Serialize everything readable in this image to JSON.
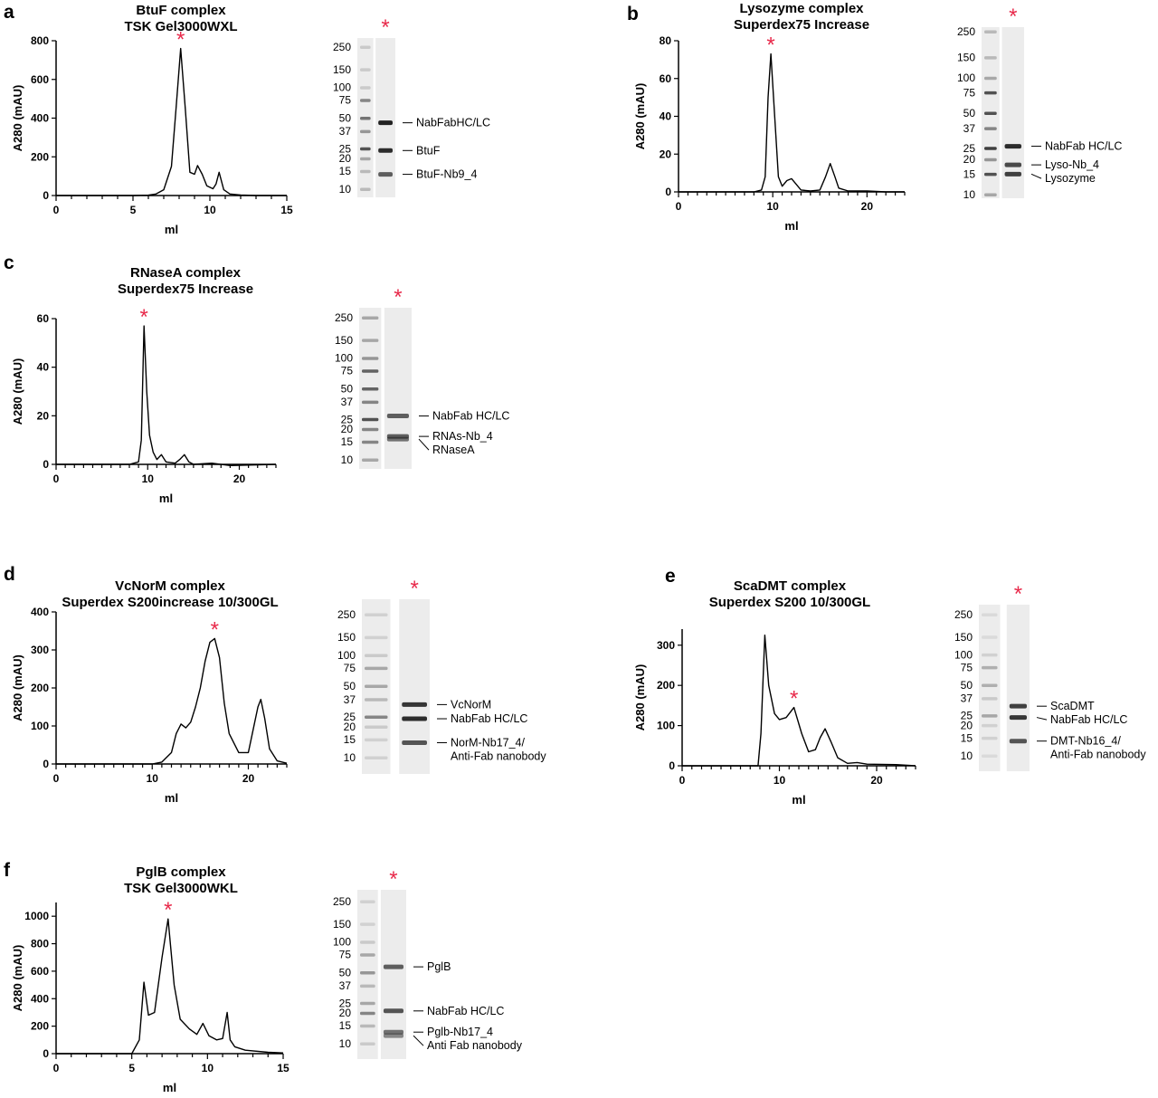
{
  "colors": {
    "line": "#000000",
    "star": "#e8294a",
    "gel_bg": "#ececec",
    "band": "#222222"
  },
  "star_symbol": "*",
  "chart_data": [
    {
      "type": "line",
      "letter": "a",
      "title": [
        "BtuF complex",
        "TSK Gel3000WXL"
      ],
      "xlabel": "ml",
      "ylabel": "A280 (mAU)",
      "xlim": [
        0,
        15
      ],
      "ylim": [
        0,
        800
      ],
      "xticks": [
        0,
        5,
        10,
        15
      ],
      "yticks": [
        0,
        200,
        400,
        600,
        800
      ],
      "star_x": 8.1,
      "x": [
        0,
        5,
        6,
        6.5,
        7,
        7.5,
        7.8,
        8.1,
        8.4,
        8.7,
        9.0,
        9.2,
        9.5,
        9.8,
        10.2,
        10.4,
        10.6,
        10.9,
        11.3,
        12,
        13,
        15
      ],
      "y": [
        0,
        0,
        2,
        8,
        30,
        150,
        450,
        760,
        450,
        120,
        110,
        155,
        110,
        50,
        35,
        60,
        120,
        30,
        8,
        3,
        0,
        0
      ],
      "gel": {
        "markers": [
          250,
          150,
          100,
          75,
          50,
          37,
          25,
          20,
          15,
          10
        ],
        "ladder_bands": [
          [
            250,
            0.2
          ],
          [
            150,
            0.2
          ],
          [
            100,
            0.2
          ],
          [
            75,
            0.6
          ],
          [
            50,
            0.7
          ],
          [
            37,
            0.5
          ],
          [
            25,
            0.9
          ],
          [
            20,
            0.4
          ],
          [
            15,
            0.3
          ],
          [
            10,
            0.3
          ]
        ],
        "sample_bands": [
          [
            45,
            1
          ],
          [
            24,
            0.95
          ],
          [
            14,
            0.7
          ]
        ],
        "labels": [
          {
            "text": "NabFabHC/LC",
            "kDa": 45
          },
          {
            "text": "BtuF",
            "kDa": 24
          },
          {
            "text": "BtuF-Nb9_4",
            "kDa": 14
          }
        ]
      }
    },
    {
      "type": "line",
      "letter": "b",
      "title": [
        "Lysozyme complex",
        "Superdex75 Increase"
      ],
      "xlabel": "ml",
      "ylabel": "A280 (mAU)",
      "xlim": [
        0,
        24
      ],
      "ylim": [
        0,
        80
      ],
      "xticks": [
        0,
        10,
        20
      ],
      "yticks": [
        0,
        20,
        40,
        60,
        80
      ],
      "star_x": 9.8,
      "x": [
        0,
        8,
        8.8,
        9.2,
        9.5,
        9.8,
        10.2,
        10.6,
        11,
        11.5,
        12,
        12.5,
        13,
        14,
        15,
        15.6,
        16.1,
        16.6,
        17,
        18,
        20,
        22,
        24
      ],
      "y": [
        0,
        0,
        1,
        8,
        50,
        73,
        40,
        8,
        3,
        6,
        7,
        4,
        1,
        0.5,
        1,
        8,
        15,
        8,
        2,
        0.5,
        0.5,
        0,
        0
      ],
      "gel": {
        "markers": [
          250,
          150,
          100,
          75,
          50,
          37,
          25,
          20,
          15,
          10
        ],
        "ladder_bands": [
          [
            250,
            0.3
          ],
          [
            150,
            0.3
          ],
          [
            100,
            0.4
          ],
          [
            75,
            0.9
          ],
          [
            50,
            0.9
          ],
          [
            37,
            0.6
          ],
          [
            25,
            1
          ],
          [
            20,
            0.5
          ],
          [
            15,
            0.9
          ],
          [
            10,
            0.4
          ]
        ],
        "sample_bands": [
          [
            26,
            0.95
          ],
          [
            18,
            0.8
          ],
          [
            15,
            0.85
          ]
        ],
        "labels": [
          {
            "text": "NabFab HC/LC",
            "kDa": 26
          },
          {
            "text": "Lyso-Nb_4",
            "kDa": 18
          },
          {
            "text": "Lysozyme",
            "kDa": 15
          }
        ]
      }
    },
    {
      "type": "line",
      "letter": "c",
      "title": [
        "RNaseA complex",
        "Superdex75 Increase"
      ],
      "xlabel": "ml",
      "ylabel": "A280 (mAU)",
      "xlim": [
        0,
        24
      ],
      "ylim": [
        0,
        60
      ],
      "xticks": [
        0,
        10,
        20
      ],
      "yticks": [
        0,
        20,
        40,
        60
      ],
      "star_x": 9.6,
      "x": [
        0,
        8,
        9,
        9.3,
        9.6,
        9.9,
        10.2,
        10.6,
        11,
        11.5,
        12,
        13,
        13.5,
        14,
        14.5,
        15,
        17,
        19,
        24
      ],
      "y": [
        0,
        0,
        1,
        10,
        57,
        30,
        12,
        5,
        2,
        4,
        1,
        0.5,
        2,
        4,
        1,
        0,
        0.5,
        -0.5,
        0
      ],
      "gel": {
        "markers": [
          250,
          150,
          100,
          75,
          50,
          37,
          25,
          20,
          15,
          10
        ],
        "ladder_bands": [
          [
            250,
            0.4
          ],
          [
            150,
            0.4
          ],
          [
            100,
            0.5
          ],
          [
            75,
            0.8
          ],
          [
            50,
            0.8
          ],
          [
            37,
            0.6
          ],
          [
            25,
            0.9
          ],
          [
            20,
            0.6
          ],
          [
            15,
            0.6
          ],
          [
            10,
            0.4
          ]
        ],
        "sample_bands": [
          [
            27,
            0.7
          ],
          [
            17,
            0.7
          ],
          [
            16,
            0.6
          ]
        ],
        "labels": [
          {
            "text": "NabFab HC/LC",
            "kDa": 27
          },
          {
            "text": "RNAs-Nb_4",
            "kDa": 17
          },
          {
            "text": "RNaseA",
            "kDa": 16
          }
        ]
      }
    },
    {
      "type": "line",
      "letter": "d",
      "title": [
        "VcNorM complex",
        "Superdex S200increase 10/300GL"
      ],
      "xlabel": "ml",
      "ylabel": "A280 (mAU)",
      "xlim": [
        0,
        24
      ],
      "ylim": [
        0,
        400
      ],
      "xticks": [
        0,
        10,
        20
      ],
      "yticks": [
        0,
        100,
        200,
        300,
        400
      ],
      "star_x": 16.5,
      "x": [
        0,
        10,
        11,
        12,
        12.5,
        13,
        13.5,
        14,
        14.5,
        15,
        15.5,
        16,
        16.5,
        17,
        17.5,
        18,
        19,
        20,
        20.5,
        21,
        21.3,
        21.7,
        22.2,
        23,
        24
      ],
      "y": [
        0,
        0,
        5,
        30,
        80,
        105,
        95,
        110,
        150,
        200,
        270,
        320,
        330,
        280,
        160,
        80,
        30,
        30,
        90,
        150,
        170,
        120,
        40,
        8,
        2
      ],
      "gel": {
        "markers": [
          250,
          150,
          100,
          75,
          50,
          37,
          25,
          20,
          15,
          10
        ],
        "split": true,
        "ladder_bands": [
          [
            250,
            0.15
          ],
          [
            150,
            0.15
          ],
          [
            100,
            0.2
          ],
          [
            75,
            0.4
          ],
          [
            50,
            0.4
          ],
          [
            37,
            0.3
          ],
          [
            25,
            0.6
          ],
          [
            20,
            0.2
          ],
          [
            15,
            0.15
          ],
          [
            10,
            0.15
          ]
        ],
        "sample_bands": [
          [
            33,
            0.9
          ],
          [
            24,
            0.95
          ],
          [
            14,
            0.75
          ]
        ],
        "labels": [
          {
            "text": "VcNorM",
            "kDa": 33
          },
          {
            "text": "NabFab HC/LC",
            "kDa": 24
          },
          {
            "text": "NorM-Nb17_4/",
            "text2": "Anti-Fab nanobody",
            "kDa": 14
          }
        ]
      }
    },
    {
      "type": "line",
      "letter": "e",
      "title": [
        "ScaDMT complex",
        "Superdex S200 10/300GL"
      ],
      "xlabel": "ml",
      "ylabel": "A280 (mAU)",
      "xlim": [
        0,
        24
      ],
      "ylim": [
        0,
        340
      ],
      "xticks": [
        0,
        10,
        20
      ],
      "yticks": [
        0,
        100,
        200,
        300
      ],
      "star_x": 11.5,
      "x": [
        0,
        7.8,
        8.1,
        8.5,
        8.9,
        9.5,
        10,
        10.7,
        11.5,
        12.3,
        13,
        13.7,
        14.2,
        14.7,
        15.3,
        16,
        17,
        18,
        19,
        22,
        24
      ],
      "y": [
        0,
        0,
        80,
        325,
        200,
        130,
        115,
        120,
        145,
        80,
        35,
        40,
        70,
        92,
        60,
        20,
        6,
        8,
        4,
        3,
        0
      ],
      "gel": {
        "markers": [
          250,
          150,
          100,
          75,
          50,
          37,
          25,
          20,
          15,
          10
        ],
        "split": true,
        "ladder_bands": [
          [
            250,
            0.1
          ],
          [
            150,
            0.1
          ],
          [
            100,
            0.15
          ],
          [
            75,
            0.35
          ],
          [
            50,
            0.35
          ],
          [
            37,
            0.2
          ],
          [
            25,
            0.4
          ],
          [
            20,
            0.15
          ],
          [
            15,
            0.15
          ],
          [
            10,
            0.1
          ]
        ],
        "sample_bands": [
          [
            31,
            0.85
          ],
          [
            24,
            0.9
          ],
          [
            14,
            0.75
          ]
        ],
        "labels": [
          {
            "text": "ScaDMT",
            "kDa": 31
          },
          {
            "text": "NabFab HC/LC",
            "kDa": 24
          },
          {
            "text": "DMT-Nb16_4/",
            "text2": "Anti-Fab nanobody",
            "kDa": 14
          }
        ]
      }
    },
    {
      "type": "line",
      "letter": "f",
      "title": [
        "PglB complex",
        "TSK Gel3000WKL"
      ],
      "xlabel": "ml",
      "ylabel": "A280 (mAU)",
      "xlim": [
        0,
        15
      ],
      "ylim": [
        0,
        1100
      ],
      "xticks": [
        0,
        5,
        10,
        15
      ],
      "yticks": [
        0,
        200,
        400,
        600,
        800,
        1000
      ],
      "star_x": 7.4,
      "x": [
        0,
        5,
        5.5,
        5.8,
        6.1,
        6.5,
        7,
        7.4,
        7.8,
        8.2,
        8.8,
        9.3,
        9.7,
        10.1,
        10.6,
        11,
        11.3,
        11.5,
        11.8,
        12.5,
        14,
        15
      ],
      "y": [
        0,
        0,
        100,
        520,
        280,
        300,
        700,
        980,
        500,
        250,
        180,
        140,
        220,
        130,
        100,
        110,
        300,
        100,
        50,
        25,
        10,
        5
      ],
      "gel": {
        "markers": [
          250,
          150,
          100,
          75,
          50,
          37,
          25,
          20,
          15,
          10
        ],
        "ladder_bands": [
          [
            250,
            0.15
          ],
          [
            150,
            0.15
          ],
          [
            100,
            0.2
          ],
          [
            75,
            0.4
          ],
          [
            50,
            0.5
          ],
          [
            37,
            0.3
          ],
          [
            25,
            0.4
          ],
          [
            20,
            0.6
          ],
          [
            15,
            0.3
          ],
          [
            10,
            0.2
          ]
        ],
        "sample_bands": [
          [
            57,
            0.7
          ],
          [
            21,
            0.75
          ],
          [
            13,
            0.6
          ],
          [
            12,
            0.5
          ]
        ],
        "labels": [
          {
            "text": "PglB",
            "kDa": 57
          },
          {
            "text": "NabFab HC/LC",
            "kDa": 21
          },
          {
            "text": "Pglb-Nb17_4",
            "kDa": 13
          },
          {
            "text": "Anti Fab nanobody",
            "kDa": 12
          }
        ]
      }
    }
  ]
}
